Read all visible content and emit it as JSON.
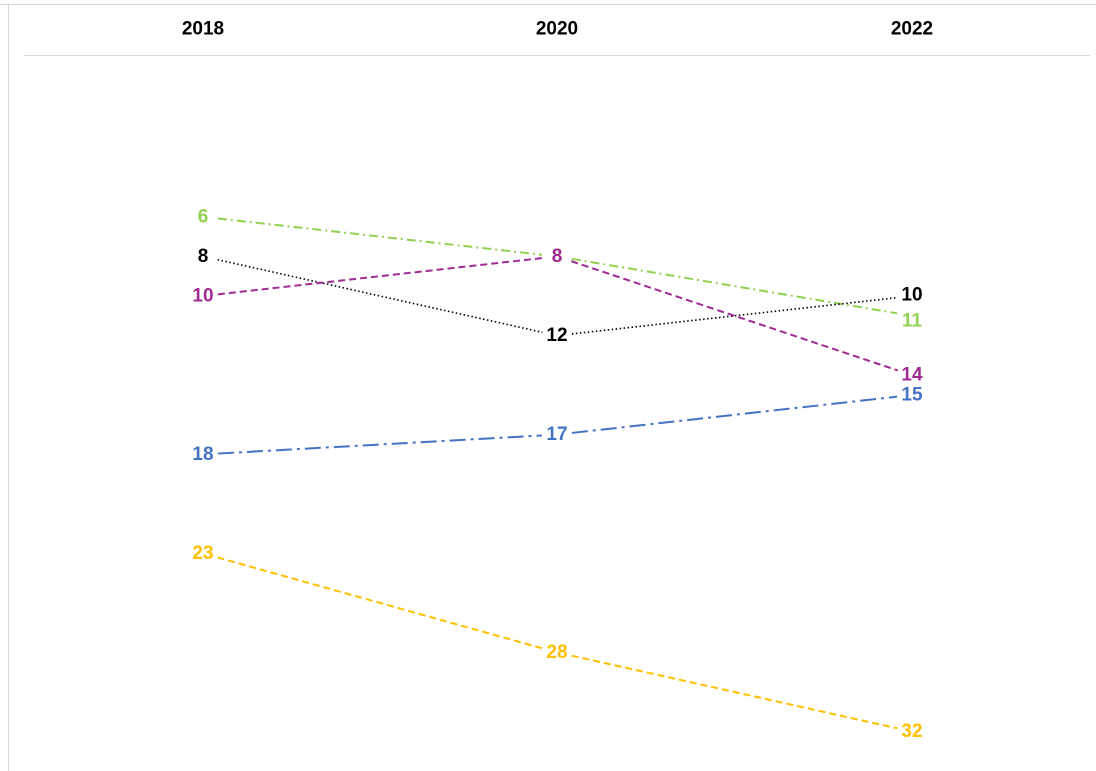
{
  "chart_data": {
    "type": "line",
    "subtype": "slope",
    "categories": [
      "2018",
      "2020",
      "2022"
    ],
    "y_axis": {
      "inverted": true,
      "ylim": [
        0,
        35
      ],
      "grid": false
    },
    "legend": "none",
    "series": [
      {
        "values": [
          6,
          8,
          11
        ],
        "color": "#92d050",
        "dash": "dash-dot"
      },
      {
        "values": [
          8,
          12,
          10
        ],
        "color": "#000000",
        "dash": "dotted"
      },
      {
        "values": [
          10,
          8,
          14
        ],
        "color": "#a02b93",
        "dash": "dashed"
      },
      {
        "values": [
          18,
          17,
          15
        ],
        "color": "#4472c4",
        "dash": "long-dash-dot"
      },
      {
        "values": [
          23,
          28,
          32
        ],
        "color": "#ffc000",
        "dash": "dashed"
      }
    ]
  }
}
